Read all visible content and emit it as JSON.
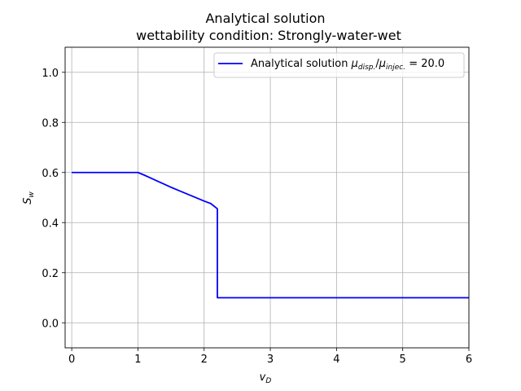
{
  "chart_data": {
    "type": "line",
    "title": "Analytical solution",
    "subtitle": "wettability condition: Strongly-water-wet",
    "xlabel": "v_D",
    "ylabel": "S_w",
    "xlim": [
      -0.1,
      6.0
    ],
    "ylim": [
      -0.1,
      1.1
    ],
    "x_ticks": [
      "0",
      "1",
      "2",
      "3",
      "4",
      "5",
      "6"
    ],
    "y_ticks": [
      "0.0",
      "0.2",
      "0.4",
      "0.6",
      "0.8",
      "1.0"
    ],
    "grid": true,
    "legend_position": "upper-right",
    "series": [
      {
        "name": "Analytical solution μdisp./μinjec. = 20.0",
        "color": "#0000ff",
        "x": [
          0.0,
          1.0,
          1.1,
          1.2,
          1.3,
          1.4,
          1.5,
          1.6,
          1.7,
          1.8,
          1.9,
          2.0,
          2.1,
          2.2,
          2.2,
          6.0
        ],
        "y": [
          0.6,
          0.6,
          0.589,
          0.577,
          0.565,
          0.553,
          0.541,
          0.53,
          0.519,
          0.508,
          0.497,
          0.486,
          0.476,
          0.455,
          0.1,
          0.1
        ]
      }
    ]
  },
  "legend": {
    "prefix": "Analytical solution ",
    "mu": "μ",
    "disp_sub": "disp.",
    "slash": "/",
    "injec_sub": "injec.",
    "suffix": " = 20.0"
  },
  "axis_text": {
    "x_main": "v",
    "x_sub": "D",
    "y_main": "S",
    "y_sub": "w"
  },
  "colors": {
    "line": "#0000ff",
    "grid": "#b0b0b0",
    "frame": "#000000"
  }
}
